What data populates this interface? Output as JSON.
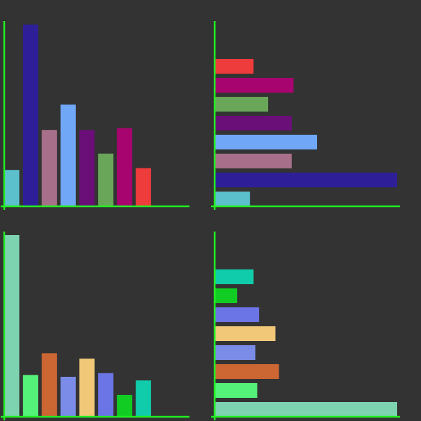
{
  "colors": {
    "background": "#333333",
    "axis": "#22ee22"
  },
  "chart_data": [
    {
      "type": "bar",
      "orientation": "vertical",
      "title": "",
      "xlabel": "",
      "ylabel": "",
      "grid": false,
      "ylim": [
        0,
        100
      ],
      "values": [
        20,
        100,
        42,
        56,
        42,
        29,
        43,
        21
      ],
      "colors": [
        "#5bbfcc",
        "#2e1f99",
        "#a86f8a",
        "#70a7f7",
        "#6b0f78",
        "#6aa65a",
        "#a8046f",
        "#ee3b3b"
      ]
    },
    {
      "type": "bar",
      "orientation": "horizontal",
      "title": "",
      "xlabel": "",
      "ylabel": "",
      "grid": false,
      "xlim": [
        0,
        100
      ],
      "values": [
        19,
        100,
        42,
        56,
        42,
        29,
        43,
        21
      ],
      "colors": [
        "#5bbfcc",
        "#2e1f99",
        "#a86f8a",
        "#70a7f7",
        "#6b0f78",
        "#6aa65a",
        "#a8046f",
        "#ee3b3b"
      ]
    },
    {
      "type": "bar",
      "orientation": "vertical",
      "title": "",
      "xlabel": "",
      "ylabel": "",
      "grid": false,
      "ylim": [
        0,
        100
      ],
      "values": [
        100,
        23,
        35,
        22,
        32,
        24,
        12,
        20
      ],
      "colors": [
        "#7dd3b0",
        "#55f27a",
        "#cc6633",
        "#7a8ce8",
        "#f0c878",
        "#6b75e6",
        "#11cc22",
        "#11ccaa"
      ]
    },
    {
      "type": "bar",
      "orientation": "horizontal",
      "title": "",
      "xlabel": "",
      "ylabel": "",
      "grid": false,
      "xlim": [
        0,
        100
      ],
      "values": [
        100,
        23,
        35,
        22,
        33,
        24,
        12,
        21
      ],
      "colors": [
        "#7dd3b0",
        "#55f27a",
        "#cc6633",
        "#7a8ce8",
        "#f0c878",
        "#6b75e6",
        "#11cc22",
        "#11ccaa"
      ]
    }
  ]
}
